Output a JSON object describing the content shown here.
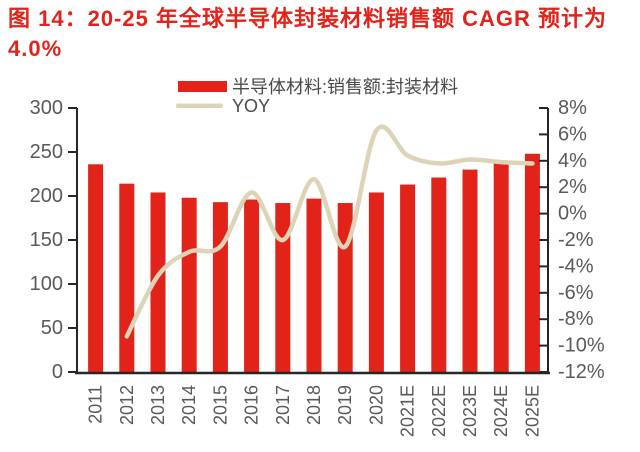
{
  "title": {
    "line1": "图 14：20-25 年全球半导体封装材料销售额 CAGR 预计为",
    "line2": "4.0%"
  },
  "colors": {
    "bar": "#e2231a",
    "line": "#ddd4b8",
    "title": "#e2231a",
    "axis": "#262626",
    "tick_label": "#595959",
    "legend_label": "#4c4948",
    "background": "#ffffff"
  },
  "chart_data": {
    "type": "bar+line combo",
    "categories": [
      "2011",
      "2012",
      "2013",
      "2014",
      "2015",
      "2016",
      "2017",
      "2018",
      "2019",
      "2020",
      "2021E",
      "2022E",
      "2023E",
      "2024E",
      "2025E"
    ],
    "series": [
      {
        "name": "半导体材料:销售额:封装材料",
        "type": "bar",
        "axis": "left",
        "values": [
          236,
          214,
          204,
          198,
          193,
          196,
          192,
          197,
          192,
          204,
          213,
          221,
          230,
          239,
          248
        ]
      },
      {
        "name": "YOY",
        "type": "line",
        "axis": "right",
        "values": [
          null,
          -9.3,
          -4.7,
          -2.9,
          -2.5,
          1.6,
          -2.0,
          2.6,
          -2.5,
          6.3,
          4.4,
          3.8,
          4.1,
          3.9,
          3.8
        ]
      }
    ],
    "left_axis": {
      "min": 0,
      "max": 300,
      "step": 50,
      "tick_values": [
        0,
        50,
        100,
        150,
        200,
        250,
        300
      ],
      "tick_labels": [
        "0",
        "50",
        "100",
        "150",
        "200",
        "250",
        "300"
      ]
    },
    "right_axis": {
      "min": -12,
      "max": 8,
      "step": 2,
      "tick_values": [
        8,
        6,
        4,
        2,
        0,
        -2,
        -4,
        -6,
        -8,
        -10,
        -12
      ],
      "tick_labels": [
        "8%",
        "6%",
        "4%",
        "2%",
        "0%",
        "-2%",
        "-4%",
        "-6%",
        "-8%",
        "-10%",
        "-12%"
      ]
    },
    "legend_position": "top-center",
    "grid": false
  }
}
